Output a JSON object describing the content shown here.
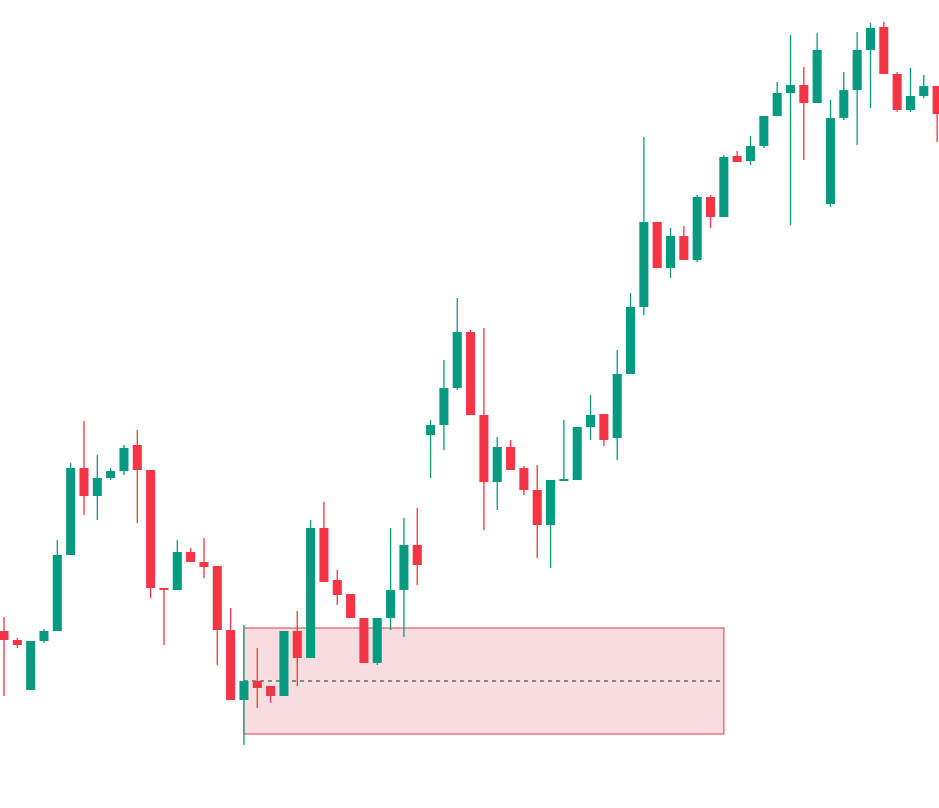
{
  "chart_data": {
    "type": "candlestick",
    "x": [
      0,
      1,
      2,
      3,
      4,
      5,
      6,
      7,
      8,
      9,
      10,
      11,
      12,
      13,
      14,
      15,
      16,
      17,
      18,
      19,
      20,
      21,
      22,
      23,
      24,
      25,
      26,
      27,
      28,
      29,
      30,
      31,
      32,
      33,
      34,
      35,
      36,
      37,
      38,
      39,
      40,
      41,
      42,
      43,
      44,
      45,
      46,
      47,
      48,
      49,
      50,
      51,
      52,
      53,
      54,
      55,
      56,
      57,
      58,
      59,
      60,
      61,
      62,
      63,
      64,
      65,
      66,
      67,
      68,
      69,
      70
    ],
    "open": [
      177,
      168,
      118,
      167,
      177,
      253,
      340,
      312,
      330,
      337,
      363,
      338,
      220,
      218,
      256,
      246,
      242,
      178,
      108,
      127,
      122,
      112,
      177,
      150,
      280,
      228,
      214,
      190,
      145,
      190,
      218,
      263,
      373,
      383,
      420,
      476,
      393,
      326,
      361,
      340,
      318,
      283,
      327,
      328,
      381,
      394,
      370,
      434,
      501,
      586,
      540,
      572,
      548,
      611,
      591,
      652,
      647,
      662,
      692,
      715,
      723,
      705,
      604,
      690,
      718,
      758,
      781,
      734,
      698,
      712,
      722
    ],
    "high": [
      191,
      170,
      167,
      179,
      268,
      345,
      387,
      353,
      340,
      363,
      378,
      338,
      220,
      268,
      260,
      270,
      242,
      200,
      183,
      160,
      122,
      177,
      197,
      288,
      306,
      238,
      214,
      190,
      190,
      280,
      290,
      300,
      388,
      448,
      510,
      478,
      480,
      371,
      368,
      342,
      343,
      328,
      388,
      381,
      413,
      394,
      458,
      515,
      671,
      586,
      580,
      582,
      613,
      613,
      653,
      657,
      672,
      692,
      726,
      773,
      741,
      775,
      708,
      736,
      776,
      785,
      786,
      736,
      740,
      733,
      722
    ],
    "low": [
      112,
      160,
      118,
      165,
      177,
      253,
      293,
      288,
      328,
      333,
      285,
      210,
      163,
      218,
      246,
      230,
      143,
      108,
      63,
      100,
      105,
      112,
      122,
      150,
      226,
      203,
      190,
      145,
      143,
      178,
      171,
      223,
      330,
      358,
      418,
      393,
      278,
      298,
      338,
      313,
      250,
      240,
      327,
      328,
      368,
      362,
      348,
      434,
      493,
      540,
      530,
      548,
      546,
      580,
      591,
      646,
      643,
      660,
      692,
      583,
      648,
      705,
      601,
      688,
      663,
      700,
      734,
      696,
      696,
      710,
      666
    ],
    "close": [
      168,
      163,
      167,
      177,
      253,
      340,
      312,
      330,
      337,
      360,
      338,
      220,
      218,
      256,
      246,
      241,
      178,
      108,
      127,
      120,
      112,
      177,
      150,
      280,
      226,
      213,
      190,
      145,
      190,
      218,
      263,
      243,
      383,
      420,
      476,
      393,
      326,
      361,
      338,
      318,
      283,
      328,
      329,
      381,
      393,
      368,
      434,
      501,
      586,
      540,
      572,
      548,
      611,
      591,
      651,
      646,
      662,
      692,
      715,
      723,
      705,
      758,
      690,
      718,
      758,
      780,
      734,
      698,
      712,
      722,
      694
    ],
    "xlim": [
      -0.3,
      70.14
    ],
    "ylim": [
      0,
      808
    ],
    "up_color": "#089981",
    "down_color": "#f23645",
    "zone": {
      "x_start": 18,
      "x_end": 54,
      "low": 74,
      "high": 180,
      "level": 127,
      "fill": "#fadde1",
      "stroke": "#e5616c",
      "level_color": "#2f5e4e"
    }
  }
}
